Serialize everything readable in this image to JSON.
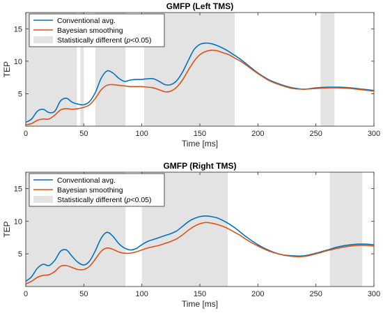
{
  "chart_data": [
    {
      "type": "line",
      "title": "GMFP (Left TMS)",
      "xlabel": "Time [ms]",
      "ylabel": "TEP",
      "xlim": [
        0,
        300
      ],
      "ylim": [
        0,
        17.5
      ],
      "xticks": [
        0,
        50,
        100,
        150,
        200,
        250,
        300
      ],
      "yticks": [
        5,
        10,
        15
      ],
      "grid": false,
      "legend_position": "top-left",
      "legend": {
        "series_labels": [
          "Conventional avg.",
          "Bayesian smoothing"
        ],
        "shade_prefix": "Statistically different (",
        "shade_var": "p",
        "shade_suffix": "<0.05)"
      },
      "shaded_regions": [
        [
          0,
          44
        ],
        [
          47,
          50
        ],
        [
          60,
          86
        ],
        [
          102,
          180
        ],
        [
          254,
          266
        ]
      ],
      "series": [
        {
          "name": "Conventional avg.",
          "color": "#0072BD",
          "x": [
            0,
            5,
            10,
            15,
            20,
            25,
            30,
            35,
            40,
            45,
            50,
            55,
            60,
            65,
            70,
            75,
            80,
            85,
            90,
            95,
            100,
            105,
            110,
            115,
            120,
            125,
            130,
            135,
            140,
            145,
            150,
            155,
            160,
            165,
            170,
            175,
            180,
            185,
            190,
            200,
            210,
            220,
            230,
            240,
            250,
            260,
            270,
            280,
            290,
            300
          ],
          "y": [
            0.6,
            1.1,
            2.3,
            2.6,
            2.1,
            2.3,
            3.9,
            4.3,
            3.7,
            3.4,
            3.3,
            3.8,
            5.2,
            7.4,
            8.5,
            8.2,
            7.4,
            6.9,
            7.1,
            7.2,
            7.2,
            7.3,
            7.3,
            6.9,
            6.4,
            6.4,
            7.0,
            8.3,
            10.1,
            11.8,
            12.6,
            12.8,
            12.7,
            12.4,
            12.0,
            11.5,
            10.9,
            10.3,
            9.6,
            8.2,
            7.1,
            6.4,
            5.9,
            5.7,
            5.9,
            6.0,
            6.0,
            5.9,
            5.7,
            5.5
          ]
        },
        {
          "name": "Bayesian smoothing",
          "color": "#D95319",
          "x": [
            0,
            5,
            10,
            15,
            20,
            25,
            30,
            35,
            40,
            45,
            50,
            55,
            60,
            65,
            70,
            75,
            80,
            85,
            90,
            95,
            100,
            105,
            110,
            115,
            120,
            125,
            130,
            135,
            140,
            145,
            150,
            155,
            160,
            165,
            170,
            175,
            180,
            185,
            190,
            200,
            210,
            220,
            230,
            240,
            250,
            260,
            270,
            280,
            290,
            300
          ],
          "y": [
            0.2,
            0.4,
            0.9,
            1.1,
            1.1,
            1.7,
            2.5,
            2.7,
            2.6,
            2.7,
            2.9,
            3.3,
            4.3,
            5.6,
            6.3,
            6.4,
            6.3,
            6.2,
            6.1,
            6.1,
            6.1,
            6.0,
            5.9,
            5.6,
            5.3,
            5.4,
            6.0,
            7.1,
            8.6,
            10.0,
            11.0,
            11.5,
            11.7,
            11.6,
            11.3,
            11.0,
            10.5,
            10.0,
            9.4,
            8.1,
            7.0,
            6.3,
            5.8,
            5.7,
            5.8,
            5.9,
            5.9,
            5.8,
            5.6,
            5.4
          ]
        }
      ]
    },
    {
      "type": "line",
      "title": "GMFP (Right TMS)",
      "xlabel": "Time [ms]",
      "ylabel": "TEP",
      "xlim": [
        0,
        300
      ],
      "ylim": [
        0,
        17.5
      ],
      "xticks": [
        0,
        50,
        100,
        150,
        200,
        250,
        300
      ],
      "yticks": [
        5,
        10,
        15
      ],
      "grid": false,
      "legend_position": "top-left",
      "legend": {
        "series_labels": [
          "Conventional avg.",
          "Bayesian smoothing"
        ],
        "shade_prefix": "Statistically different (",
        "shade_var": "p",
        "shade_suffix": "<0.05)"
      },
      "shaded_regions": [
        [
          0,
          86
        ],
        [
          100,
          174
        ],
        [
          262,
          290
        ]
      ],
      "series": [
        {
          "name": "Conventional avg.",
          "color": "#0072BD",
          "x": [
            0,
            5,
            10,
            15,
            20,
            25,
            30,
            35,
            40,
            45,
            50,
            55,
            60,
            65,
            70,
            75,
            80,
            85,
            90,
            95,
            100,
            105,
            110,
            115,
            120,
            125,
            130,
            135,
            140,
            145,
            150,
            155,
            160,
            165,
            170,
            175,
            180,
            185,
            190,
            200,
            210,
            220,
            230,
            240,
            250,
            260,
            270,
            280,
            290,
            300
          ],
          "y": [
            0.8,
            1.5,
            2.8,
            3.4,
            3.2,
            4.0,
            5.4,
            5.6,
            4.6,
            3.7,
            3.3,
            3.9,
            5.5,
            7.4,
            8.3,
            7.7,
            6.6,
            5.9,
            5.6,
            5.8,
            6.4,
            6.9,
            7.2,
            7.5,
            7.8,
            8.1,
            8.5,
            9.2,
            9.9,
            10.4,
            10.7,
            10.8,
            10.7,
            10.5,
            10.1,
            9.6,
            9.0,
            8.3,
            7.6,
            6.4,
            5.5,
            4.9,
            4.7,
            4.7,
            5.1,
            5.6,
            6.1,
            6.4,
            6.5,
            6.4
          ]
        },
        {
          "name": "Bayesian smoothing",
          "color": "#D95319",
          "x": [
            0,
            5,
            10,
            15,
            20,
            25,
            30,
            35,
            40,
            45,
            50,
            55,
            60,
            65,
            70,
            75,
            80,
            85,
            90,
            95,
            100,
            105,
            110,
            115,
            120,
            125,
            130,
            135,
            140,
            145,
            150,
            155,
            160,
            165,
            170,
            175,
            180,
            185,
            190,
            200,
            210,
            220,
            230,
            240,
            250,
            260,
            270,
            280,
            290,
            300
          ],
          "y": [
            0.4,
            0.8,
            1.4,
            1.7,
            1.8,
            2.3,
            3.1,
            3.2,
            2.9,
            2.6,
            2.6,
            3.1,
            4.2,
            5.4,
            5.9,
            5.7,
            5.3,
            5.1,
            5.1,
            5.3,
            5.6,
            5.9,
            6.1,
            6.3,
            6.6,
            6.9,
            7.3,
            7.9,
            8.6,
            9.2,
            9.6,
            9.8,
            9.7,
            9.5,
            9.2,
            8.8,
            8.3,
            7.8,
            7.2,
            6.2,
            5.4,
            4.9,
            4.6,
            4.6,
            5.0,
            5.5,
            5.9,
            6.2,
            6.3,
            6.2
          ]
        }
      ]
    }
  ]
}
